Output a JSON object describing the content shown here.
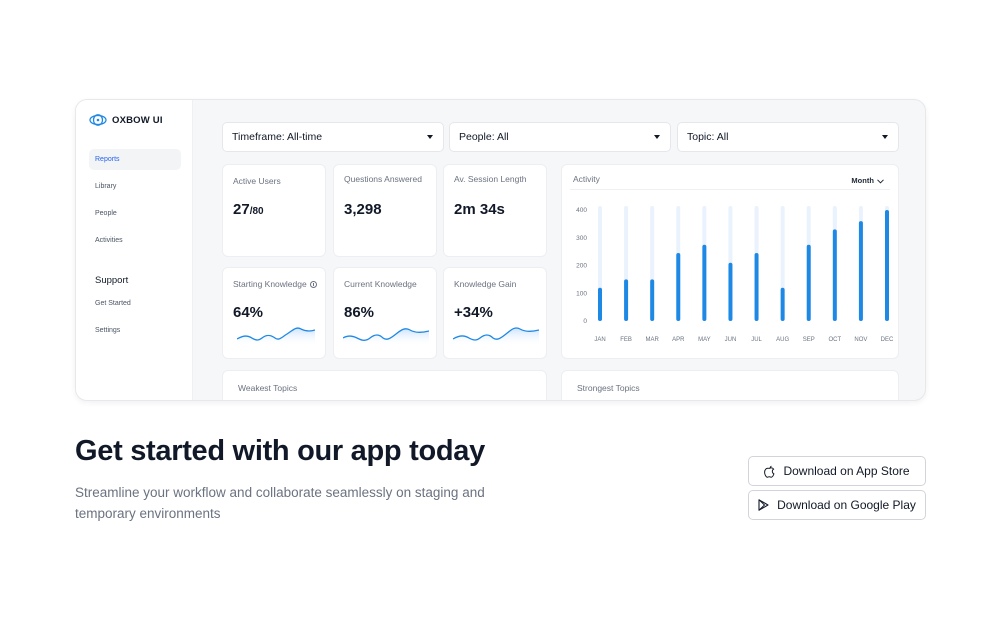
{
  "brand": {
    "name": "OXBOW UI",
    "accent": "#1e88e5"
  },
  "sidebar": {
    "items": [
      "Reports",
      "Library",
      "People",
      "Activities"
    ],
    "active_index": 0,
    "support_heading": "Support",
    "support_items": [
      "Get Started",
      "Settings"
    ]
  },
  "filters": [
    {
      "label": "Timeframe: All-time"
    },
    {
      "label": "People: All"
    },
    {
      "label": "Topic: All"
    }
  ],
  "stats": [
    {
      "title": "Active Users",
      "value": "27",
      "sub": "/80"
    },
    {
      "title": "Questions Answered",
      "value": "3,298"
    },
    {
      "title": "Av. Session Length",
      "value": "2m 34s"
    },
    {
      "title": "Starting Knowledge",
      "value": "64%",
      "info_icon": "info-icon"
    },
    {
      "title": "Current Knowledge",
      "value": "86%"
    },
    {
      "title": "Knowledge Gain",
      "value": "+34%"
    }
  ],
  "activity": {
    "title": "Activity",
    "period": "Month",
    "chart_data": {
      "type": "bar",
      "categories": [
        "JAN",
        "FEB",
        "MAR",
        "APR",
        "MAY",
        "JUN",
        "JUL",
        "AUG",
        "SEP",
        "OCT",
        "NOV",
        "DEC"
      ],
      "values": [
        120,
        150,
        150,
        245,
        275,
        210,
        245,
        120,
        275,
        330,
        360,
        400
      ],
      "yticks": [
        "400",
        "300",
        "200",
        "100",
        "0"
      ],
      "ylim": [
        0,
        400
      ],
      "bar_color": "#1e88e5",
      "track_color": "#eaf2fd"
    }
  },
  "topics": {
    "weakest": "Weakest Topics",
    "strongest": "Strongest Topics"
  },
  "cta": {
    "title": "Get started with our app today",
    "description": "Streamline your workflow and collaborate seamlessly on staging and temporary environments",
    "app_store": "Download on App Store",
    "google_play": "Download on Google Play"
  }
}
